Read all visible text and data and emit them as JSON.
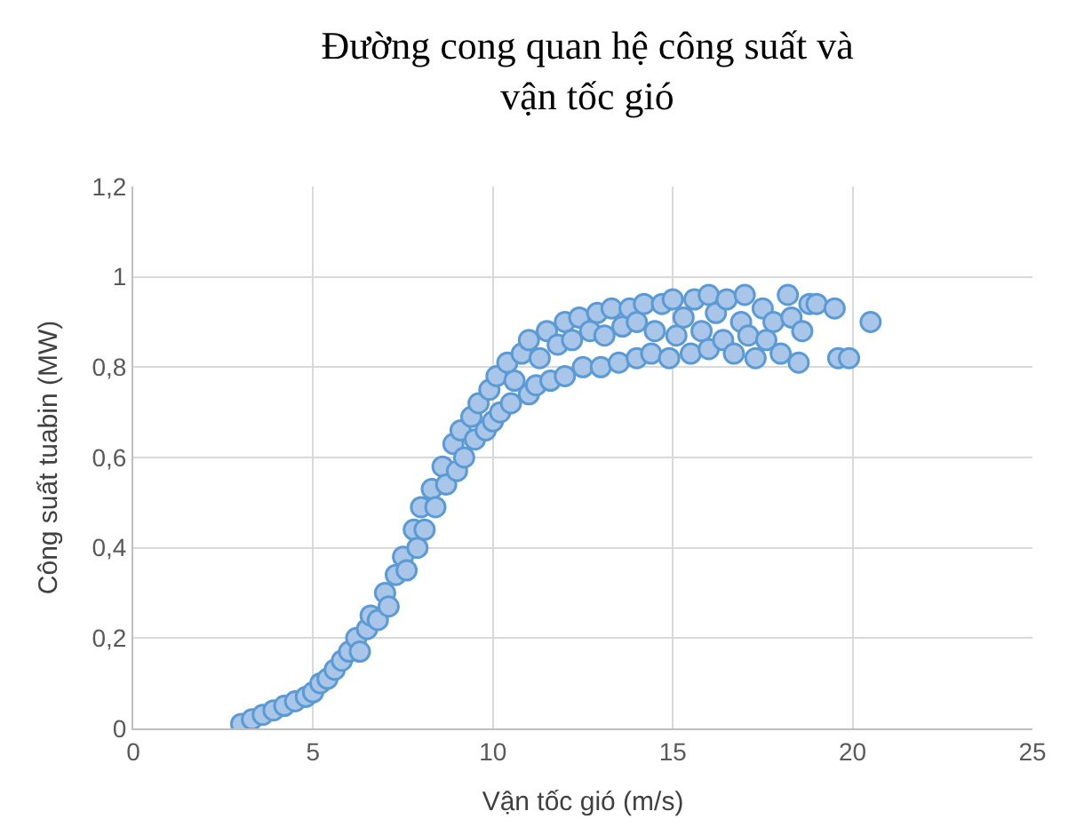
{
  "chart_data": {
    "type": "scatter",
    "title": "Đường cong quan hệ công suất và\nvận tốc gió",
    "xlabel": "Vận tốc gió (m/s)",
    "ylabel": "Công suất tuabin (MW)",
    "xlim": [
      0,
      25
    ],
    "xticks": [
      0,
      5,
      10,
      15,
      20,
      25
    ],
    "ylim": [
      0,
      1.2
    ],
    "yticks": [
      0,
      {
        "value": 0.2,
        "label": "0,2"
      },
      {
        "value": 0.4,
        "label": "0,4"
      },
      {
        "value": 0.6,
        "label": "0,6"
      },
      {
        "value": 0.8,
        "label": "0,8"
      },
      1,
      {
        "value": 1.2,
        "label": "1,2"
      }
    ],
    "grid": true,
    "marker": "circle",
    "series": [
      {
        "color": "#5b9bd5",
        "x": [
          3.0,
          3.3,
          3.6,
          3.9,
          4.2,
          4.5,
          4.8,
          5.0,
          5.2,
          5.4,
          5.6,
          5.8,
          6.0,
          6.2,
          6.3,
          6.5,
          6.6,
          6.8,
          7.0,
          7.1,
          7.3,
          7.5,
          7.6,
          7.8,
          7.9,
          8.0,
          8.1,
          8.3,
          8.4,
          8.6,
          8.7,
          8.9,
          9.0,
          9.1,
          9.2,
          9.4,
          9.5,
          9.6,
          9.8,
          9.9,
          10.0,
          10.1,
          10.2,
          10.4,
          10.5,
          10.6,
          10.8,
          11.0,
          11.0,
          11.2,
          11.3,
          11.5,
          11.6,
          11.8,
          12.0,
          12.0,
          12.2,
          12.4,
          12.5,
          12.7,
          12.9,
          13.0,
          13.1,
          13.3,
          13.5,
          13.6,
          13.8,
          14.0,
          14.0,
          14.2,
          14.4,
          14.5,
          14.7,
          14.9,
          15.0,
          15.1,
          15.3,
          15.5,
          15.6,
          15.8,
          16.0,
          16.0,
          16.2,
          16.4,
          16.5,
          16.7,
          16.9,
          17.0,
          17.1,
          17.3,
          17.5,
          17.6,
          17.8,
          18.0,
          18.2,
          18.3,
          18.5,
          18.6,
          18.8,
          19.0,
          19.5,
          19.6,
          19.9,
          20.5
        ],
        "values": [
          0.01,
          0.02,
          0.03,
          0.04,
          0.05,
          0.06,
          0.07,
          0.08,
          0.1,
          0.11,
          0.13,
          0.15,
          0.17,
          0.2,
          0.17,
          0.22,
          0.25,
          0.24,
          0.3,
          0.27,
          0.34,
          0.38,
          0.35,
          0.44,
          0.4,
          0.49,
          0.44,
          0.53,
          0.49,
          0.58,
          0.54,
          0.63,
          0.57,
          0.66,
          0.6,
          0.69,
          0.64,
          0.72,
          0.66,
          0.75,
          0.68,
          0.78,
          0.7,
          0.81,
          0.72,
          0.77,
          0.83,
          0.74,
          0.86,
          0.76,
          0.82,
          0.88,
          0.77,
          0.85,
          0.9,
          0.78,
          0.86,
          0.91,
          0.8,
          0.88,
          0.92,
          0.8,
          0.87,
          0.93,
          0.81,
          0.89,
          0.93,
          0.82,
          0.9,
          0.94,
          0.83,
          0.88,
          0.94,
          0.82,
          0.95,
          0.87,
          0.91,
          0.83,
          0.95,
          0.88,
          0.96,
          0.84,
          0.92,
          0.86,
          0.95,
          0.83,
          0.9,
          0.96,
          0.87,
          0.82,
          0.93,
          0.86,
          0.9,
          0.83,
          0.96,
          0.91,
          0.81,
          0.88,
          0.94,
          0.94,
          0.93,
          0.82,
          0.82,
          0.9
        ]
      }
    ]
  }
}
